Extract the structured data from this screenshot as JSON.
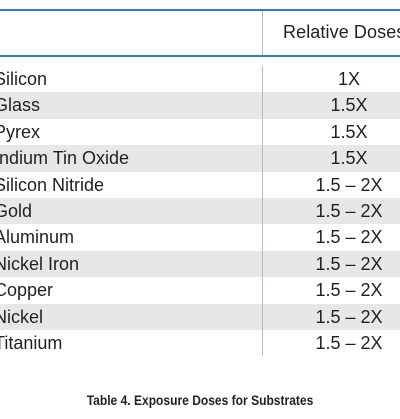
{
  "table": {
    "header": {
      "material": "",
      "relative_doses": "Relative Doses"
    },
    "rows": [
      {
        "material": "Silicon",
        "dose": "1X"
      },
      {
        "material": "Glass",
        "dose": "1.5X"
      },
      {
        "material": "Pyrex",
        "dose": "1.5X"
      },
      {
        "material": "Indium Tin Oxide",
        "dose": "1.5X"
      },
      {
        "material": "Silicon Nitride",
        "dose": "1.5 – 2X"
      },
      {
        "material": "Gold",
        "dose": "1.5 – 2X"
      },
      {
        "material": "Aluminum",
        "dose": "1.5 – 2X"
      },
      {
        "material": "Nickel Iron",
        "dose": "1.5 – 2X"
      },
      {
        "material": "Copper",
        "dose": "1.5 – 2X"
      },
      {
        "material": "Nickel",
        "dose": "1.5 – 2X"
      },
      {
        "material": "Titanium",
        "dose": "1.5 – 2X"
      }
    ],
    "caption": "Table 4. Exposure Doses for Substrates"
  },
  "colors": {
    "rule": "#2a7fc3",
    "row_shade": "#e6e7e8",
    "divider": "#b8babc",
    "text": "#231f20"
  }
}
